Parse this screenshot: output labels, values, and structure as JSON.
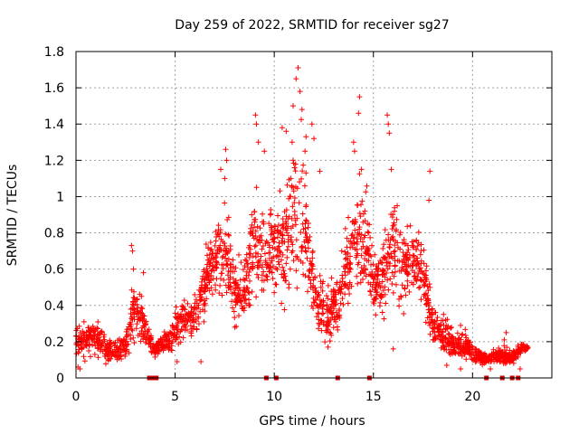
{
  "chart_data": {
    "type": "scatter",
    "title": "Day 259 of 2022, SRMTID for receiver sg27",
    "xlabel": "GPS time / hours",
    "ylabel": "SRMTID / TECUs",
    "xlim": [
      0,
      24
    ],
    "ylim": [
      0,
      1.8
    ],
    "xticks": [
      0,
      5,
      10,
      15,
      20
    ],
    "yticks": [
      0,
      0.2,
      0.4,
      0.6,
      0.8,
      1,
      1.2,
      1.4,
      1.6,
      1.8
    ],
    "xtick_labels": [
      "0",
      "5",
      "10",
      "15",
      "20"
    ],
    "ytick_labels": [
      "0",
      "0.2",
      "0.4",
      "0.6",
      "0.8",
      "1",
      "1.2",
      "1.4",
      "1.6",
      "1.8"
    ],
    "grid": true,
    "marker": "+",
    "color": "#ff0000",
    "zero_marker_color": "#cc0000",
    "envelope": [
      [
        0.0,
        0.1,
        0.32
      ],
      [
        0.5,
        0.08,
        0.32
      ],
      [
        1.0,
        0.1,
        0.38
      ],
      [
        1.5,
        0.06,
        0.26
      ],
      [
        2.0,
        0.08,
        0.22
      ],
      [
        2.5,
        0.08,
        0.26
      ],
      [
        2.8,
        0.1,
        0.55
      ],
      [
        3.0,
        0.12,
        0.62
      ],
      [
        3.5,
        0.12,
        0.42
      ],
      [
        4.0,
        0.1,
        0.18
      ],
      [
        4.3,
        0.12,
        0.28
      ],
      [
        4.8,
        0.1,
        0.32
      ],
      [
        5.2,
        0.15,
        0.48
      ],
      [
        5.7,
        0.2,
        0.45
      ],
      [
        6.2,
        0.2,
        0.58
      ],
      [
        6.7,
        0.35,
        0.82
      ],
      [
        7.2,
        0.4,
        0.95
      ],
      [
        7.6,
        0.32,
        1.05
      ],
      [
        8.0,
        0.2,
        0.7
      ],
      [
        8.5,
        0.22,
        0.75
      ],
      [
        9.0,
        0.35,
        1.2
      ],
      [
        9.5,
        0.32,
        1.05
      ],
      [
        10.0,
        0.35,
        1.12
      ],
      [
        10.5,
        0.32,
        1.1
      ],
      [
        11.0,
        0.4,
        1.45
      ],
      [
        11.3,
        0.4,
        1.6
      ],
      [
        11.7,
        0.3,
        1.1
      ],
      [
        12.2,
        0.18,
        0.68
      ],
      [
        12.7,
        0.12,
        0.55
      ],
      [
        13.2,
        0.2,
        0.6
      ],
      [
        13.7,
        0.35,
        0.95
      ],
      [
        14.2,
        0.38,
        1.2
      ],
      [
        14.6,
        0.3,
        1.25
      ],
      [
        15.0,
        0.25,
        0.75
      ],
      [
        15.5,
        0.3,
        0.82
      ],
      [
        16.0,
        0.35,
        1.15
      ],
      [
        16.5,
        0.32,
        0.9
      ],
      [
        17.0,
        0.38,
        0.95
      ],
      [
        17.5,
        0.28,
        0.85
      ],
      [
        18.0,
        0.15,
        0.45
      ],
      [
        18.5,
        0.1,
        0.38
      ],
      [
        19.0,
        0.07,
        0.28
      ],
      [
        19.5,
        0.07,
        0.3
      ],
      [
        20.0,
        0.06,
        0.22
      ],
      [
        20.5,
        0.06,
        0.16
      ],
      [
        21.0,
        0.05,
        0.16
      ],
      [
        21.5,
        0.05,
        0.2
      ],
      [
        22.0,
        0.06,
        0.16
      ],
      [
        22.5,
        0.12,
        0.22
      ],
      [
        22.8,
        0.14,
        0.2
      ]
    ],
    "points": [
      [
        2.8,
        0.73
      ],
      [
        2.85,
        0.7
      ],
      [
        2.9,
        0.6
      ],
      [
        3.3,
        0.45
      ],
      [
        3.4,
        0.58
      ],
      [
        7.55,
        1.26
      ],
      [
        7.6,
        1.2
      ],
      [
        7.5,
        1.1
      ],
      [
        7.3,
        1.15
      ],
      [
        9.05,
        1.45
      ],
      [
        9.1,
        1.4
      ],
      [
        9.2,
        1.3
      ],
      [
        9.5,
        1.25
      ],
      [
        10.4,
        1.38
      ],
      [
        10.6,
        1.36
      ],
      [
        10.9,
        1.3
      ],
      [
        10.95,
        1.5
      ],
      [
        11.1,
        1.65
      ],
      [
        11.2,
        1.71
      ],
      [
        11.3,
        1.58
      ],
      [
        11.4,
        1.48
      ],
      [
        11.55,
        1.25
      ],
      [
        11.6,
        1.33
      ],
      [
        11.9,
        1.4
      ],
      [
        12.0,
        1.32
      ],
      [
        12.3,
        1.14
      ],
      [
        14.0,
        1.3
      ],
      [
        14.05,
        1.25
      ],
      [
        14.3,
        1.55
      ],
      [
        14.25,
        1.46
      ],
      [
        14.4,
        1.15
      ],
      [
        15.7,
        1.45
      ],
      [
        15.75,
        1.4
      ],
      [
        15.8,
        1.35
      ],
      [
        15.9,
        1.15
      ],
      [
        16.2,
        0.95
      ],
      [
        17.8,
        0.98
      ],
      [
        17.85,
        1.14
      ],
      [
        14.15,
        0.56
      ],
      [
        14.2,
        0.52
      ],
      [
        16.0,
        0.16
      ],
      [
        19.4,
        0.05
      ],
      [
        21.6,
        0.21
      ],
      [
        21.7,
        0.25
      ],
      [
        22.4,
        0.05
      ],
      [
        0.1,
        0.06
      ],
      [
        0.2,
        0.05
      ],
      [
        5.1,
        0.09
      ],
      [
        6.3,
        0.09
      ],
      [
        18.7,
        0.07
      ],
      [
        20.9,
        0.05
      ]
    ],
    "zero_points": [
      3.7,
      3.8,
      3.9,
      4.05,
      9.6,
      10.1,
      13.2,
      14.8,
      20.7,
      21.5,
      22.0,
      22.3
    ]
  }
}
